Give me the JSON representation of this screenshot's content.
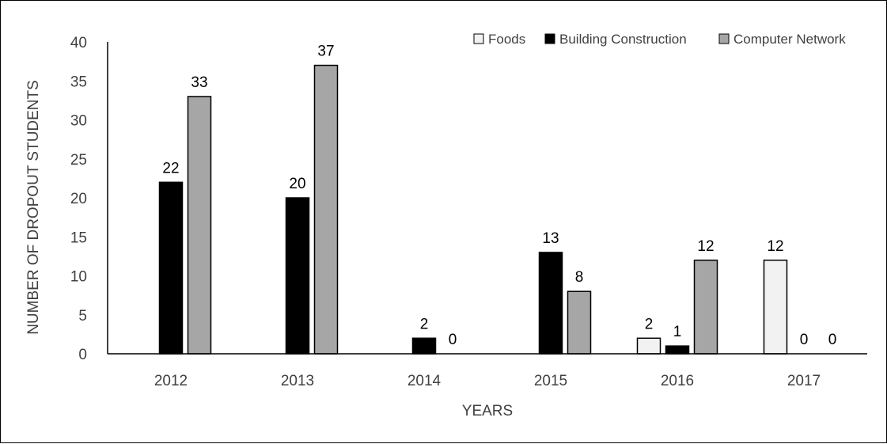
{
  "chart_data": {
    "type": "bar",
    "categories": [
      "2012",
      "2013",
      "2014",
      "2015",
      "2016",
      "2017"
    ],
    "series": [
      {
        "name": "Foods",
        "color": "#f2f2f2",
        "values": [
          null,
          null,
          null,
          null,
          2,
          12
        ],
        "labels": [
          "",
          "",
          "",
          "",
          "2",
          "12"
        ]
      },
      {
        "name": "Building Construction",
        "color": "#000000",
        "values": [
          22,
          20,
          2,
          13,
          1,
          null
        ],
        "labels": [
          "22",
          "20",
          "2",
          "13",
          "1",
          "0"
        ]
      },
      {
        "name": "Computer Network",
        "color": "#a6a6a6",
        "values": [
          33,
          37,
          0,
          8,
          12,
          0
        ],
        "labels": [
          "33",
          "37",
          "0",
          "8",
          "12",
          "0"
        ]
      }
    ],
    "xlabel": "YEARS",
    "ylabel": "NUMBER OF DROPOUT STUDENTS",
    "ylim": [
      0,
      40
    ],
    "yticks": [
      0,
      5,
      10,
      15,
      20,
      25,
      30,
      35,
      40
    ],
    "grid": false,
    "legend": "top-right"
  }
}
